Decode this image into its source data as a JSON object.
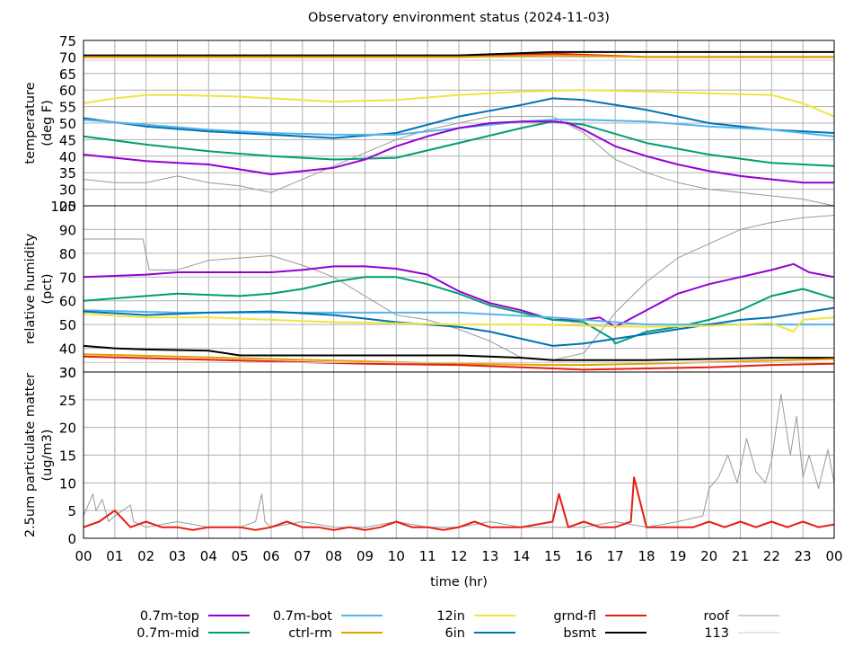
{
  "chart_data": {
    "title": "Observatory environment status (2024-11-03)",
    "type": "line",
    "xlabel": "time (hr)",
    "xlim": [
      0,
      24
    ],
    "x_tick_labels": [
      "00",
      "01",
      "02",
      "03",
      "04",
      "05",
      "06",
      "07",
      "08",
      "09",
      "10",
      "11",
      "12",
      "13",
      "14",
      "15",
      "16",
      "17",
      "18",
      "19",
      "20",
      "21",
      "22",
      "23",
      "00"
    ],
    "grid": true,
    "legend_placement": "bottom",
    "colors": {
      "0.7m-top": "#9400d3",
      "0.7m-mid": "#009e73",
      "0.7m-bot": "#56b4e9",
      "ctrl-rm": "#e69f00",
      "12in": "#f0e442",
      "6in": "#0072b2",
      "grnd-fl": "#e51e10",
      "bsmt": "#000000",
      "roof": "#999999",
      "113": "#cccccc"
    },
    "legend": {
      "col1": [
        "0.7m-top",
        "0.7m-mid"
      ],
      "col2": [
        "0.7m-bot",
        "ctrl-rm"
      ],
      "col3": [
        "12in",
        "6in"
      ],
      "col4": [
        "grnd-fl",
        "bsmt"
      ],
      "col5": [
        "roof",
        "113"
      ]
    },
    "panels": [
      {
        "ylabel_line1": "temperature",
        "ylabel_line2": "(deg F)",
        "ylim": [
          25,
          75
        ],
        "y_ticks": [
          "25",
          "30",
          "35",
          "40",
          "45",
          "50",
          "55",
          "60",
          "65",
          "70",
          "75"
        ],
        "series": [
          {
            "name": "grnd-fl",
            "x": [
              0,
              3,
              6,
              9,
              12,
              15,
              18,
              21,
              24
            ],
            "y": [
              70,
              70,
              70,
              70,
              70,
              71,
              70,
              70,
              70
            ]
          },
          {
            "name": "bsmt",
            "x": [
              0,
              6,
              12,
              15,
              18,
              21,
              24
            ],
            "y": [
              70.5,
              70.5,
              70.5,
              71.5,
              71.5,
              71.5,
              71.5
            ]
          },
          {
            "name": "ctrl-rm",
            "x": [
              0,
              6,
              12,
              15,
              18,
              21,
              24
            ],
            "y": [
              70,
              70,
              70,
              70.5,
              70,
              70,
              70
            ]
          },
          {
            "name": "roof",
            "x": [
              0,
              1,
              2,
              3,
              4,
              5,
              6,
              7,
              8,
              9,
              10,
              11,
              12,
              13,
              14,
              15,
              16,
              17,
              18,
              19,
              20,
              21,
              22,
              23,
              24
            ],
            "y": [
              33,
              32,
              32,
              34,
              32,
              31,
              29,
              33,
              37,
              41,
              45,
              48,
              50,
              52,
              52,
              52,
              47,
              39,
              35,
              32,
              30,
              29,
              28,
              27,
              25
            ]
          },
          {
            "name": "113",
            "x": [
              0,
              6,
              12,
              18,
              24
            ],
            "y": [
              69,
              69,
              69,
              69,
              69
            ]
          },
          {
            "name": "12in",
            "x": [
              0,
              1,
              2,
              3,
              5,
              7,
              8,
              10,
              12,
              14,
              16,
              18,
              20,
              22,
              23,
              24
            ],
            "y": [
              56,
              57.5,
              58.5,
              58.5,
              58,
              57,
              56.5,
              57,
              58.5,
              59.5,
              60,
              59.5,
              59,
              58.5,
              56,
              52
            ]
          },
          {
            "name": "6in",
            "x": [
              0,
              2,
              4,
              6,
              8,
              10,
              12,
              14,
              15,
              16,
              18,
              20,
              22,
              24
            ],
            "y": [
              51.5,
              49,
              47.5,
              46.5,
              45.5,
              47,
              52,
              55.5,
              57.5,
              57,
              54,
              50,
              48,
              47
            ]
          },
          {
            "name": "0.7m-bot",
            "x": [
              0,
              2,
              4,
              6,
              8,
              10,
              12,
              14,
              15,
              16,
              18,
              20,
              22,
              24
            ],
            "y": [
              51,
              49.5,
              48,
              47,
              46.5,
              46.5,
              48.5,
              50.5,
              51,
              51,
              50.5,
              49,
              48,
              46
            ]
          },
          {
            "name": "0.7m-mid",
            "x": [
              0,
              2,
              4,
              6,
              8,
              10,
              12,
              14,
              15,
              16,
              18,
              20,
              22,
              24
            ],
            "y": [
              46,
              43.5,
              41.5,
              40,
              39,
              39.5,
              44,
              48.5,
              50.5,
              49.5,
              44,
              40.5,
              38,
              37
            ]
          },
          {
            "name": "0.7m-top",
            "x": [
              0,
              1,
              2,
              3,
              4,
              5,
              6,
              7,
              8,
              9,
              10,
              11,
              12,
              13,
              14,
              15,
              15.5,
              16,
              17,
              18,
              19,
              20,
              21,
              22,
              23,
              24
            ],
            "y": [
              40.5,
              39.5,
              38.5,
              38,
              37.5,
              36,
              34.5,
              35.5,
              36.5,
              39,
              43,
              46,
              48.5,
              50,
              50.5,
              50.5,
              50,
              48,
              43,
              40,
              37.5,
              35.5,
              34,
              33,
              32,
              32
            ]
          }
        ]
      },
      {
        "ylabel_line1": "relative humidity",
        "ylabel_line2": "(pct)",
        "ylim": [
          30,
          100
        ],
        "y_ticks": [
          "30",
          "40",
          "50",
          "60",
          "70",
          "80",
          "90",
          "100"
        ],
        "series": [
          {
            "name": "roof",
            "x": [
              0,
              1,
              1.9,
              2.1,
              3,
              4,
              5,
              6,
              7,
              8,
              9,
              10,
              11,
              12,
              13,
              14,
              15,
              16,
              17,
              18,
              19,
              20,
              21,
              22,
              23,
              24
            ],
            "y": [
              86,
              86,
              86,
              73,
              73,
              77,
              78,
              79,
              75,
              70,
              62,
              54,
              52,
              48,
              43,
              36,
              35,
              38,
              55,
              68,
              78,
              84,
              90,
              93,
              95,
              96
            ]
          },
          {
            "name": "0.7m-top",
            "x": [
              0,
              2,
              3,
              5,
              6,
              7,
              8,
              9,
              10,
              11,
              12,
              13,
              14,
              15,
              16,
              16.5,
              17,
              18,
              19,
              20,
              21,
              22,
              22.7,
              23.2,
              24
            ],
            "y": [
              70,
              71,
              72,
              72,
              72,
              73,
              74.5,
              74.5,
              73.5,
              71,
              64,
              59,
              56,
              52,
              52,
              53,
              49,
              56,
              63,
              67,
              70,
              73,
              75.5,
              72,
              70
            ]
          },
          {
            "name": "0.7m-mid",
            "x": [
              0,
              2,
              3,
              5,
              6,
              7,
              8,
              9,
              10,
              11,
              12,
              13,
              14,
              15,
              16,
              16.9,
              17,
              18,
              19,
              20,
              21,
              22,
              23,
              24
            ],
            "y": [
              60,
              62,
              63,
              62,
              63,
              65,
              68,
              70,
              70,
              67,
              63,
              58,
              55,
              52,
              51,
              44,
              42,
              47,
              49,
              52,
              56,
              62,
              65,
              61
            ]
          },
          {
            "name": "0.7m-bot",
            "x": [
              0,
              3,
              6,
              9,
              12,
              15,
              16,
              17,
              18,
              21,
              24
            ],
            "y": [
              56,
              55,
              55,
              55,
              55,
              53,
              52,
              51,
              50,
              50,
              50
            ]
          },
          {
            "name": "6in",
            "x": [
              0,
              2,
              4,
              6,
              8,
              10,
              12,
              13,
              14,
              15,
              16,
              17,
              18,
              19,
              20,
              21,
              22,
              23,
              24
            ],
            "y": [
              55.5,
              54,
              55,
              55.5,
              54,
              51,
              49,
              47,
              44,
              41,
              42,
              44,
              46,
              48,
              50,
              52,
              53,
              55,
              57
            ]
          },
          {
            "name": "12in",
            "x": [
              0,
              2,
              4,
              6,
              8,
              10,
              12,
              14,
              16,
              18,
              20,
              22,
              22.7,
              23,
              24
            ],
            "y": [
              54.5,
              53,
              53,
              52,
              51,
              50.5,
              50,
              50,
              49.5,
              49,
              49.5,
              50.5,
              47,
              52,
              53
            ]
          },
          {
            "name": "bsmt",
            "x": [
              0,
              1,
              2,
              4,
              5,
              8,
              10,
              12,
              14,
              15,
              16,
              18,
              20,
              22,
              24
            ],
            "y": [
              41,
              40,
              39.5,
              39,
              37,
              37,
              37,
              37,
              36,
              35,
              35,
              35,
              35.5,
              36,
              36
            ]
          },
          {
            "name": "ctrl-rm",
            "x": [
              0,
              3,
              6,
              9,
              12,
              15,
              16,
              18,
              21,
              24
            ],
            "y": [
              37.5,
              36.5,
              35.5,
              34.5,
              33.5,
              33,
              33,
              33.5,
              34.5,
              35.5
            ]
          },
          {
            "name": "grnd-fl",
            "x": [
              0,
              3,
              6,
              9,
              12,
              14,
              15,
              16,
              18,
              20,
              22,
              24
            ],
            "y": [
              36.5,
              35.5,
              34.5,
              33.5,
              33,
              32,
              31.5,
              31,
              31.5,
              32,
              33,
              33.5
            ]
          },
          {
            "name": "113",
            "x": [
              0,
              6,
              12,
              18,
              24
            ],
            "y": [
              34,
              34,
              34,
              34,
              34
            ]
          }
        ]
      },
      {
        "ylabel_line1": "2.5um particulate matter",
        "ylabel_line2": "(ug/m3)",
        "ylim": [
          0,
          30
        ],
        "y_ticks": [
          "0",
          "5",
          "10",
          "15",
          "20",
          "25",
          "30"
        ],
        "series": [
          {
            "name": "roof",
            "x": [
              0,
              0.3,
              0.4,
              0.6,
              0.8,
              1.0,
              1.5,
              1.6,
              2,
              3,
              4,
              5,
              5.5,
              5.7,
              5.8,
              6,
              7,
              8,
              9,
              10,
              11,
              12,
              13,
              14,
              15,
              16,
              17,
              18,
              19,
              19.8,
              20,
              20.3,
              20.6,
              20.9,
              21.2,
              21.5,
              21.8,
              22,
              22.3,
              22.6,
              22.8,
              23,
              23.2,
              23.5,
              23.8,
              24
            ],
            "y": [
              4,
              8,
              5,
              7,
              3,
              4,
              6,
              3,
              2,
              3,
              2,
              2,
              3,
              8,
              3,
              2,
              3,
              2,
              2,
              3,
              2,
              2,
              3,
              2,
              2,
              2,
              3,
              2,
              3,
              4,
              9,
              11,
              15,
              10,
              18,
              12,
              10,
              14,
              26,
              15,
              22,
              11,
              15,
              9,
              16,
              10
            ]
          },
          {
            "name": "grnd-fl",
            "x": [
              0,
              0.5,
              1,
              1.5,
              2,
              2.5,
              3,
              3.5,
              4,
              4.5,
              5,
              5.5,
              6,
              6.5,
              7,
              7.5,
              8,
              8.5,
              9,
              9.5,
              10,
              10.5,
              11,
              11.5,
              12,
              12.5,
              13,
              13.5,
              14,
              14.5,
              15,
              15.2,
              15.5,
              16,
              16.5,
              17,
              17.5,
              17.6,
              18,
              18.5,
              19,
              19.5,
              20,
              20.5,
              21,
              21.5,
              22,
              22.5,
              23,
              23.5,
              24
            ],
            "y": [
              2,
              3,
              5,
              2,
              3,
              2,
              2,
              1.5,
              2,
              2,
              2,
              1.5,
              2,
              3,
              2,
              2,
              1.5,
              2,
              1.5,
              2,
              3,
              2,
              2,
              1.5,
              2,
              3,
              2,
              2,
              2,
              2.5,
              3,
              8,
              2,
              3,
              2,
              2,
              3,
              11,
              2,
              2,
              2,
              2,
              3,
              2,
              3,
              2,
              3,
              2,
              3,
              2,
              2.5
            ]
          }
        ]
      }
    ]
  }
}
